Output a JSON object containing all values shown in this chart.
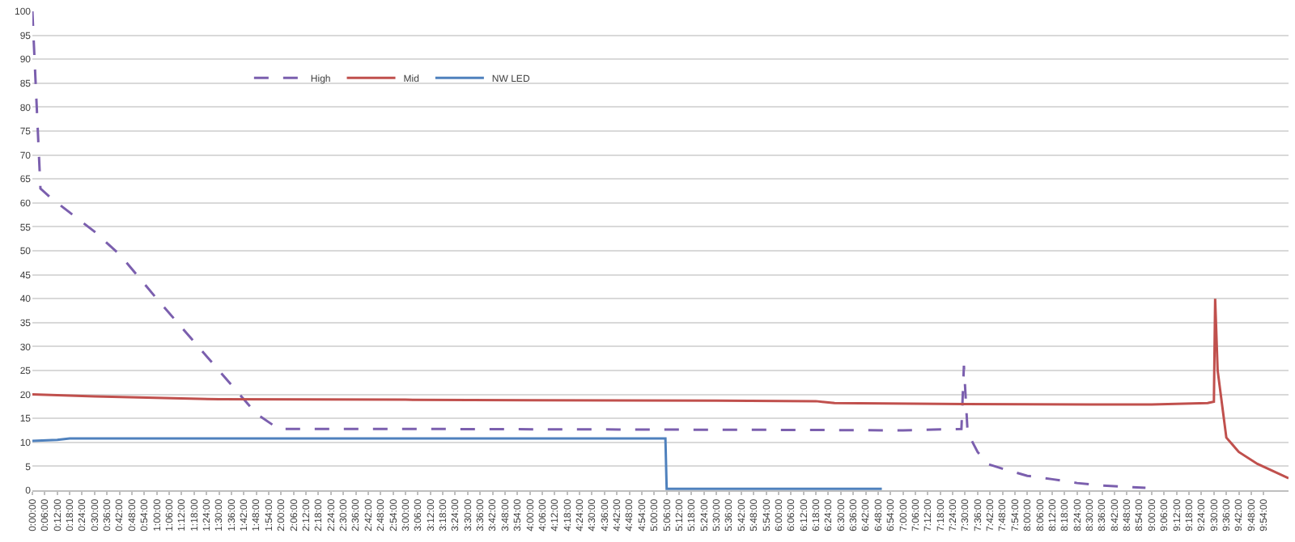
{
  "chart_data": {
    "type": "line",
    "xlim": [
      0,
      10.1
    ],
    "ylim": [
      0,
      100
    ],
    "yticks": [
      0,
      5,
      10,
      15,
      20,
      25,
      30,
      35,
      40,
      45,
      50,
      55,
      60,
      65,
      70,
      75,
      80,
      85,
      90,
      95,
      100
    ],
    "xticks": [
      {
        "value": 0,
        "label": "0:00:00"
      },
      {
        "value": 0.1,
        "label": "0:06:00"
      },
      {
        "value": 0.2,
        "label": "0:12:00"
      },
      {
        "value": 0.3,
        "label": "0:18:00"
      },
      {
        "value": 0.4,
        "label": "0:24:00"
      },
      {
        "value": 0.5,
        "label": "0:30:00"
      },
      {
        "value": 0.6,
        "label": "0:36:00"
      },
      {
        "value": 0.7,
        "label": "0:42:00"
      },
      {
        "value": 0.8,
        "label": "0:48:00"
      },
      {
        "value": 0.9,
        "label": "0:54:00"
      },
      {
        "value": 1.0,
        "label": "1:00:00"
      },
      {
        "value": 1.1,
        "label": "1:06:00"
      },
      {
        "value": 1.2,
        "label": "1:12:00"
      },
      {
        "value": 1.3,
        "label": "1:18:00"
      },
      {
        "value": 1.4,
        "label": "1:24:00"
      },
      {
        "value": 1.5,
        "label": "1:30:00"
      },
      {
        "value": 1.6,
        "label": "1:36:00"
      },
      {
        "value": 1.7,
        "label": "1:42:00"
      },
      {
        "value": 1.8,
        "label": "1:48:00"
      },
      {
        "value": 1.9,
        "label": "1:54:00"
      },
      {
        "value": 2.0,
        "label": "2:00:00"
      },
      {
        "value": 2.1,
        "label": "2:06:00"
      },
      {
        "value": 2.2,
        "label": "2:12:00"
      },
      {
        "value": 2.3,
        "label": "2:18:00"
      },
      {
        "value": 2.4,
        "label": "2:24:00"
      },
      {
        "value": 2.5,
        "label": "2:30:00"
      },
      {
        "value": 2.6,
        "label": "2:36:00"
      },
      {
        "value": 2.7,
        "label": "2:42:00"
      },
      {
        "value": 2.8,
        "label": "2:48:00"
      },
      {
        "value": 2.9,
        "label": "2:54:00"
      },
      {
        "value": 3.0,
        "label": "3:00:00"
      },
      {
        "value": 3.1,
        "label": "3:06:00"
      },
      {
        "value": 3.2,
        "label": "3:12:00"
      },
      {
        "value": 3.3,
        "label": "3:18:00"
      },
      {
        "value": 3.4,
        "label": "3:24:00"
      },
      {
        "value": 3.5,
        "label": "3:30:00"
      },
      {
        "value": 3.6,
        "label": "3:36:00"
      },
      {
        "value": 3.7,
        "label": "3:42:00"
      },
      {
        "value": 3.8,
        "label": "3:48:00"
      },
      {
        "value": 3.9,
        "label": "3:54:00"
      },
      {
        "value": 4.0,
        "label": "4:00:00"
      },
      {
        "value": 4.1,
        "label": "4:06:00"
      },
      {
        "value": 4.2,
        "label": "4:12:00"
      },
      {
        "value": 4.3,
        "label": "4:18:00"
      },
      {
        "value": 4.4,
        "label": "4:24:00"
      },
      {
        "value": 4.5,
        "label": "4:30:00"
      },
      {
        "value": 4.6,
        "label": "4:36:00"
      },
      {
        "value": 4.7,
        "label": "4:42:00"
      },
      {
        "value": 4.8,
        "label": "4:48:00"
      },
      {
        "value": 4.9,
        "label": "4:54:00"
      },
      {
        "value": 5.0,
        "label": "5:00:00"
      },
      {
        "value": 5.1,
        "label": "5:06:00"
      },
      {
        "value": 5.2,
        "label": "5:12:00"
      },
      {
        "value": 5.3,
        "label": "5:18:00"
      },
      {
        "value": 5.4,
        "label": "5:24:00"
      },
      {
        "value": 5.5,
        "label": "5:30:00"
      },
      {
        "value": 5.6,
        "label": "5:36:00"
      },
      {
        "value": 5.7,
        "label": "5:42:00"
      },
      {
        "value": 5.8,
        "label": "5:48:00"
      },
      {
        "value": 5.9,
        "label": "5:54:00"
      },
      {
        "value": 6.0,
        "label": "6:00:00"
      },
      {
        "value": 6.1,
        "label": "6:06:00"
      },
      {
        "value": 6.2,
        "label": "6:12:00"
      },
      {
        "value": 6.3,
        "label": "6:18:00"
      },
      {
        "value": 6.4,
        "label": "6:24:00"
      },
      {
        "value": 6.5,
        "label": "6:30:00"
      },
      {
        "value": 6.6,
        "label": "6:36:00"
      },
      {
        "value": 6.7,
        "label": "6:42:00"
      },
      {
        "value": 6.8,
        "label": "6:48:00"
      },
      {
        "value": 6.9,
        "label": "6:54:00"
      },
      {
        "value": 7.0,
        "label": "7:00:00"
      },
      {
        "value": 7.1,
        "label": "7:06:00"
      },
      {
        "value": 7.2,
        "label": "7:12:00"
      },
      {
        "value": 7.3,
        "label": "7:18:00"
      },
      {
        "value": 7.4,
        "label": "7:24:00"
      },
      {
        "value": 7.5,
        "label": "7:30:00"
      },
      {
        "value": 7.6,
        "label": "7:36:00"
      },
      {
        "value": 7.7,
        "label": "7:42:00"
      },
      {
        "value": 7.8,
        "label": "7:48:00"
      },
      {
        "value": 7.9,
        "label": "7:54:00"
      },
      {
        "value": 8.0,
        "label": "8:00:00"
      },
      {
        "value": 8.1,
        "label": "8:06:00"
      },
      {
        "value": 8.2,
        "label": "8:12:00"
      },
      {
        "value": 8.3,
        "label": "8:18:00"
      },
      {
        "value": 8.4,
        "label": "8:24:00"
      },
      {
        "value": 8.5,
        "label": "8:30:00"
      },
      {
        "value": 8.6,
        "label": "8:36:00"
      },
      {
        "value": 8.7,
        "label": "8:42:00"
      },
      {
        "value": 8.8,
        "label": "8:48:00"
      },
      {
        "value": 8.9,
        "label": "8:54:00"
      },
      {
        "value": 9.0,
        "label": "9:00:00"
      },
      {
        "value": 9.1,
        "label": "9:06:00"
      },
      {
        "value": 9.2,
        "label": "9:12:00"
      },
      {
        "value": 9.3,
        "label": "9:18:00"
      },
      {
        "value": 9.4,
        "label": "9:24:00"
      },
      {
        "value": 9.5,
        "label": "9:30:00"
      },
      {
        "value": 9.6,
        "label": "9:36:00"
      },
      {
        "value": 9.7,
        "label": "9:42:00"
      },
      {
        "value": 9.8,
        "label": "9:48:00"
      },
      {
        "value": 9.9,
        "label": "9:54:00"
      }
    ],
    "grid": "y",
    "legend": "top left",
    "series": [
      {
        "name": "High",
        "color": "#7b5fae",
        "line_style": "dashed",
        "x": [
          0,
          0.065,
          0.15,
          0.3,
          0.5,
          0.71,
          1.0,
          1.3,
          1.6,
          1.8,
          1.98,
          3.0,
          4.5,
          6.0,
          7.0,
          7.47,
          7.49,
          7.52,
          7.6,
          7.69,
          7.8,
          8.0,
          8.2,
          8.4,
          8.6,
          8.8,
          8.95
        ],
        "values": [
          100,
          63,
          61,
          58,
          54,
          49,
          40,
          31,
          22,
          16,
          12.8,
          12.8,
          12.7,
          12.6,
          12.5,
          12.8,
          26,
          12,
          8,
          5.4,
          4.5,
          3,
          2.3,
          1.5,
          1,
          0.7,
          0.5
        ]
      },
      {
        "name": "Mid",
        "color": "#c0504d",
        "line_style": "solid",
        "x": [
          0,
          0.5,
          1.5,
          3.0,
          4.0,
          5.5,
          6.3,
          6.45,
          7.5,
          8.5,
          9.0,
          9.45,
          9.5,
          9.51,
          9.53,
          9.6,
          9.7,
          9.85,
          10.1
        ],
        "values": [
          20,
          19.6,
          19,
          18.9,
          18.8,
          18.7,
          18.6,
          18.2,
          18,
          17.9,
          17.9,
          18.2,
          18.5,
          40,
          25,
          11,
          8,
          5.5,
          2.5
        ]
      },
      {
        "name": "NW LED",
        "color": "#4f81bd",
        "line_style": "solid",
        "x": [
          0,
          0.2,
          0.3,
          2.0,
          4.0,
          5.09,
          5.1,
          6.83
        ],
        "values": [
          10.3,
          10.5,
          10.8,
          10.8,
          10.8,
          10.8,
          0.3,
          0.3
        ]
      }
    ]
  }
}
